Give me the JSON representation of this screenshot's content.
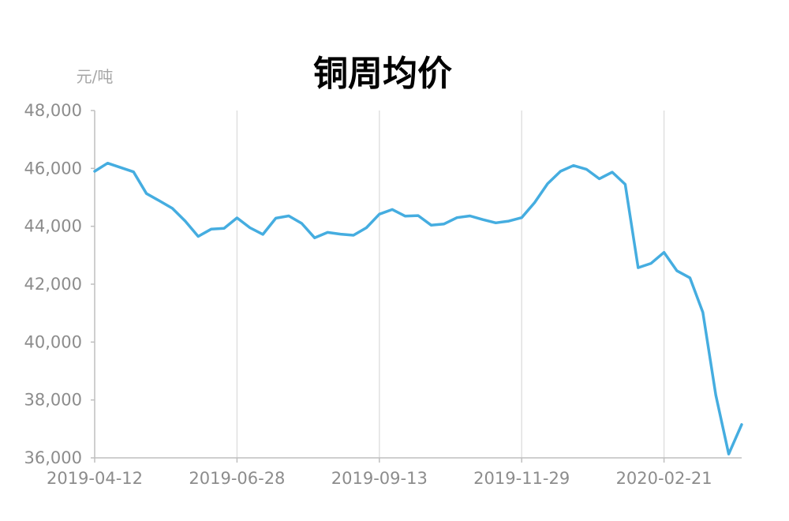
{
  "chart_data": {
    "type": "line",
    "title": "铜周均价",
    "unit_label": "元/吨",
    "ylim": [
      36000,
      48000
    ],
    "y_ticks": [
      48000,
      46000,
      44000,
      42000,
      40000,
      38000,
      36000
    ],
    "y_tick_labels": [
      "48,000",
      "46,000",
      "44,000",
      "42,000",
      "40,000",
      "38,000",
      "36,000"
    ],
    "x_tick_labels": [
      "2019-04-12",
      "2019-06-28",
      "2019-09-13",
      "2019-11-29",
      "2020-02-21"
    ],
    "x_tick_indices": [
      0,
      11,
      22,
      33,
      44
    ],
    "vertical_gridlines": true,
    "horizontal_gridlines": false,
    "color": "#45ade0",
    "x": [
      "2019-04-12",
      "2019-04-19",
      "2019-04-26",
      "2019-05-03",
      "2019-05-10",
      "2019-05-17",
      "2019-05-24",
      "2019-05-31",
      "2019-06-07",
      "2019-06-14",
      "2019-06-21",
      "2019-06-28",
      "2019-07-05",
      "2019-07-12",
      "2019-07-19",
      "2019-07-26",
      "2019-08-02",
      "2019-08-09",
      "2019-08-16",
      "2019-08-23",
      "2019-08-30",
      "2019-09-06",
      "2019-09-13",
      "2019-09-20",
      "2019-09-27",
      "2019-10-04",
      "2019-10-11",
      "2019-10-18",
      "2019-10-25",
      "2019-11-01",
      "2019-11-08",
      "2019-11-15",
      "2019-11-22",
      "2019-11-29",
      "2019-12-06",
      "2019-12-13",
      "2019-12-20",
      "2019-12-27",
      "2020-01-03",
      "2020-01-10",
      "2020-01-17",
      "2020-01-24",
      "2020-01-31",
      "2020-02-07",
      "2020-02-14",
      "2020-02-21",
      "2020-02-28",
      "2020-03-06",
      "2020-03-13",
      "2020-03-20",
      "2020-03-27"
    ],
    "series": [
      {
        "values": [
          45900,
          46180,
          46030,
          45880,
          45130,
          44880,
          44620,
          44180,
          43650,
          43900,
          43930,
          44290,
          43950,
          43720,
          44280,
          44360,
          44100,
          43600,
          43790,
          43730,
          43690,
          43950,
          44420,
          44580,
          44350,
          44370,
          44040,
          44080,
          44300,
          44360,
          44230,
          44120,
          44180,
          44300,
          44820,
          45470,
          45900,
          46100,
          45970,
          45640,
          45870,
          45450,
          42570,
          42720,
          43100,
          42460,
          42220,
          41030,
          38170,
          36130,
          37150
        ]
      }
    ]
  }
}
